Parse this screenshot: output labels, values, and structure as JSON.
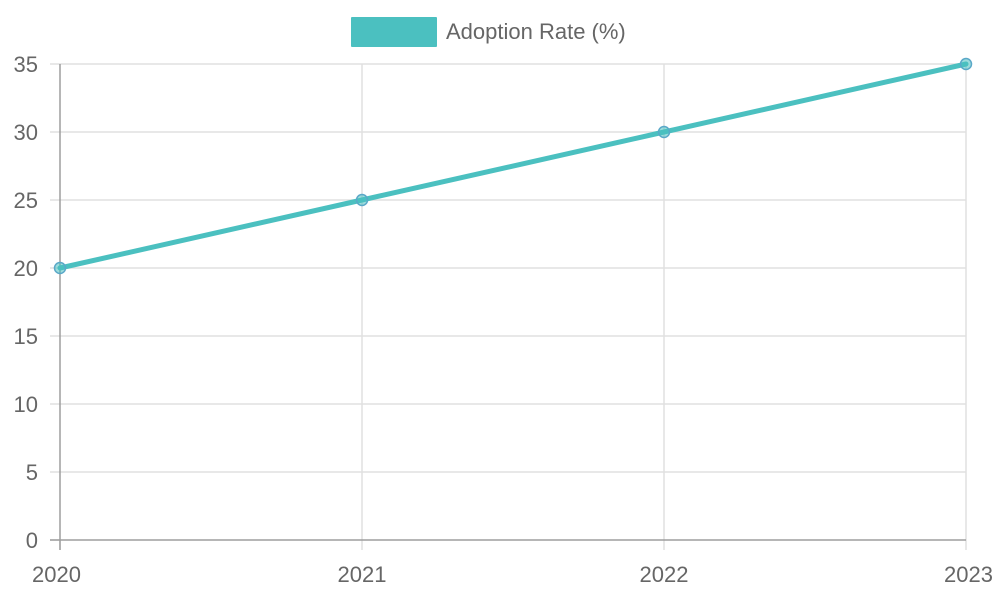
{
  "chart_data": {
    "type": "line",
    "categories": [
      "2020",
      "2021",
      "2022",
      "2023"
    ],
    "series": [
      {
        "name": "Adoption Rate (%)",
        "values": [
          20,
          25,
          30,
          35
        ],
        "color": "#4bc0c0"
      }
    ],
    "title": "",
    "xlabel": "",
    "ylabel": "",
    "ylim": [
      0,
      35
    ],
    "y_ticks": [
      0,
      5,
      10,
      15,
      20,
      25,
      30,
      35
    ],
    "grid": true,
    "legend_position": "top-center"
  }
}
